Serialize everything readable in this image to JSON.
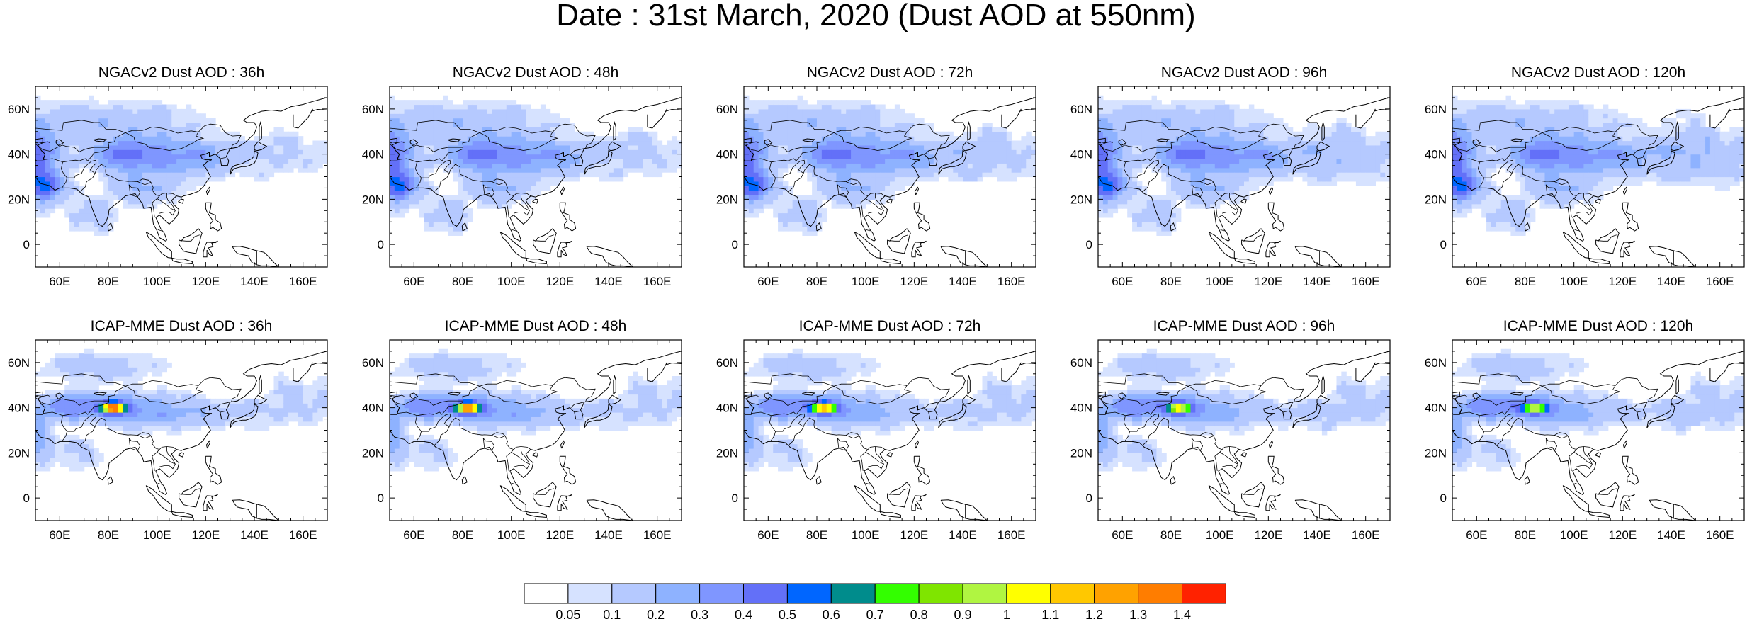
{
  "title": "Date : 31st March, 2020 (Dust AOD at 550nm)",
  "panels": [
    {
      "title": "NGACv2 Dust AOD : 36h",
      "model": "ngac",
      "lead": 36
    },
    {
      "title": "NGACv2 Dust AOD : 48h",
      "model": "ngac",
      "lead": 48
    },
    {
      "title": "NGACv2 Dust AOD : 72h",
      "model": "ngac",
      "lead": 72
    },
    {
      "title": "NGACv2 Dust AOD : 96h",
      "model": "ngac",
      "lead": 96
    },
    {
      "title": "NGACv2 Dust AOD : 120h",
      "model": "ngac",
      "lead": 120
    },
    {
      "title": "ICAP-MME Dust AOD : 36h",
      "model": "icap",
      "lead": 36
    },
    {
      "title": "ICAP-MME Dust AOD : 48h",
      "model": "icap",
      "lead": 48
    },
    {
      "title": "ICAP-MME Dust AOD : 72h",
      "model": "icap",
      "lead": 72
    },
    {
      "title": "ICAP-MME Dust AOD : 96h",
      "model": "icap",
      "lead": 96
    },
    {
      "title": "ICAP-MME Dust AOD : 120h",
      "model": "icap",
      "lead": 120
    }
  ],
  "map": {
    "lon_range": [
      50,
      170
    ],
    "lat_range": [
      -10,
      70
    ],
    "lon_ticks": [
      60,
      80,
      100,
      120,
      140,
      160
    ],
    "lon_tick_labels": [
      "60E",
      "80E",
      "100E",
      "120E",
      "140E",
      "160E"
    ],
    "lat_ticks": [
      0,
      20,
      40,
      60
    ],
    "lat_tick_labels": [
      "0",
      "20N",
      "40N",
      "60N"
    ]
  },
  "colorbar": {
    "labels": [
      "0.05",
      "0.1",
      "0.2",
      "0.3",
      "0.4",
      "0.5",
      "0.6",
      "0.7",
      "0.8",
      "0.9",
      "1",
      "1.1",
      "1.2",
      "1.3",
      "1.4"
    ],
    "colors": [
      "#ffffff",
      "#d6e2ff",
      "#b5c9ff",
      "#8eb2ff",
      "#7f96ff",
      "#6370f8",
      "#0066ff",
      "#008c8c",
      "#33ff00",
      "#7fe500",
      "#b0f541",
      "#ffff00",
      "#ffc800",
      "#ffa200",
      "#ff7d00",
      "#ff2200"
    ]
  }
}
